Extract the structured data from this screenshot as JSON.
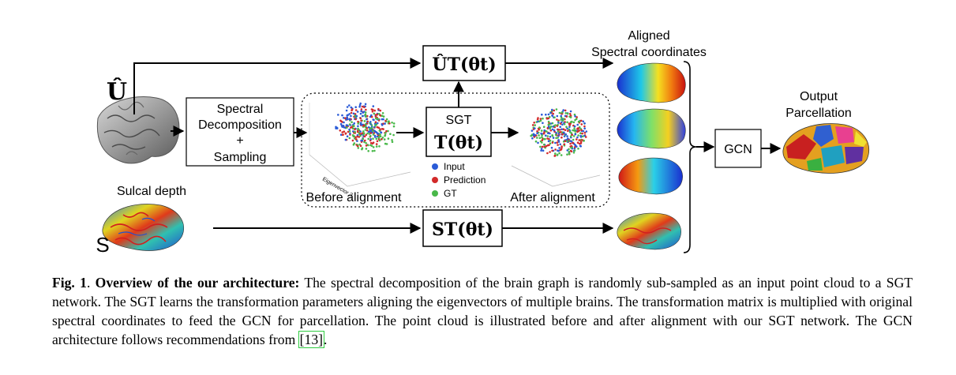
{
  "diagram": {
    "u_hat_label": "Û",
    "s_label": "S",
    "sulcal_depth_label": "Sulcal depth",
    "spectral_box": [
      "Spectral",
      "Decomposition",
      "+",
      "Sampling"
    ],
    "ut_box": "ÛT(θt)",
    "sgt_box": {
      "title": "SGT",
      "formula": "T(θt)"
    },
    "st_box": "ST(θt)",
    "before_label": "Before alignment",
    "after_label": "After alignment",
    "legend": [
      {
        "label": "Input",
        "color": "#2a5bd7"
      },
      {
        "label": "Prediction",
        "color": "#d22a2a"
      },
      {
        "label": "GT",
        "color": "#49b84a"
      }
    ],
    "aligned_label": [
      "Aligned",
      "Spectral coordinates"
    ],
    "gcn_label": "GCN",
    "output_label": [
      "Output",
      "Parcellation"
    ],
    "axis_label": "Eigenvector 2"
  },
  "caption": {
    "fig_number": "Fig. 1",
    "title": "Overview of the our architecture:",
    "text": " The spectral decomposition of the brain graph is randomly sub-sampled as an input point cloud to a SGT network.  The SGT learns the transformation parameters aligning the eigenvectors of multiple brains. The transformation matrix is multiplied with original spectral coordinates to feed the GCN for parcellation. The point cloud is illustrated before and after alignment with our SGT network. The GCN architecture follows recommendations from ",
    "ref": "[13]",
    "end": "."
  }
}
